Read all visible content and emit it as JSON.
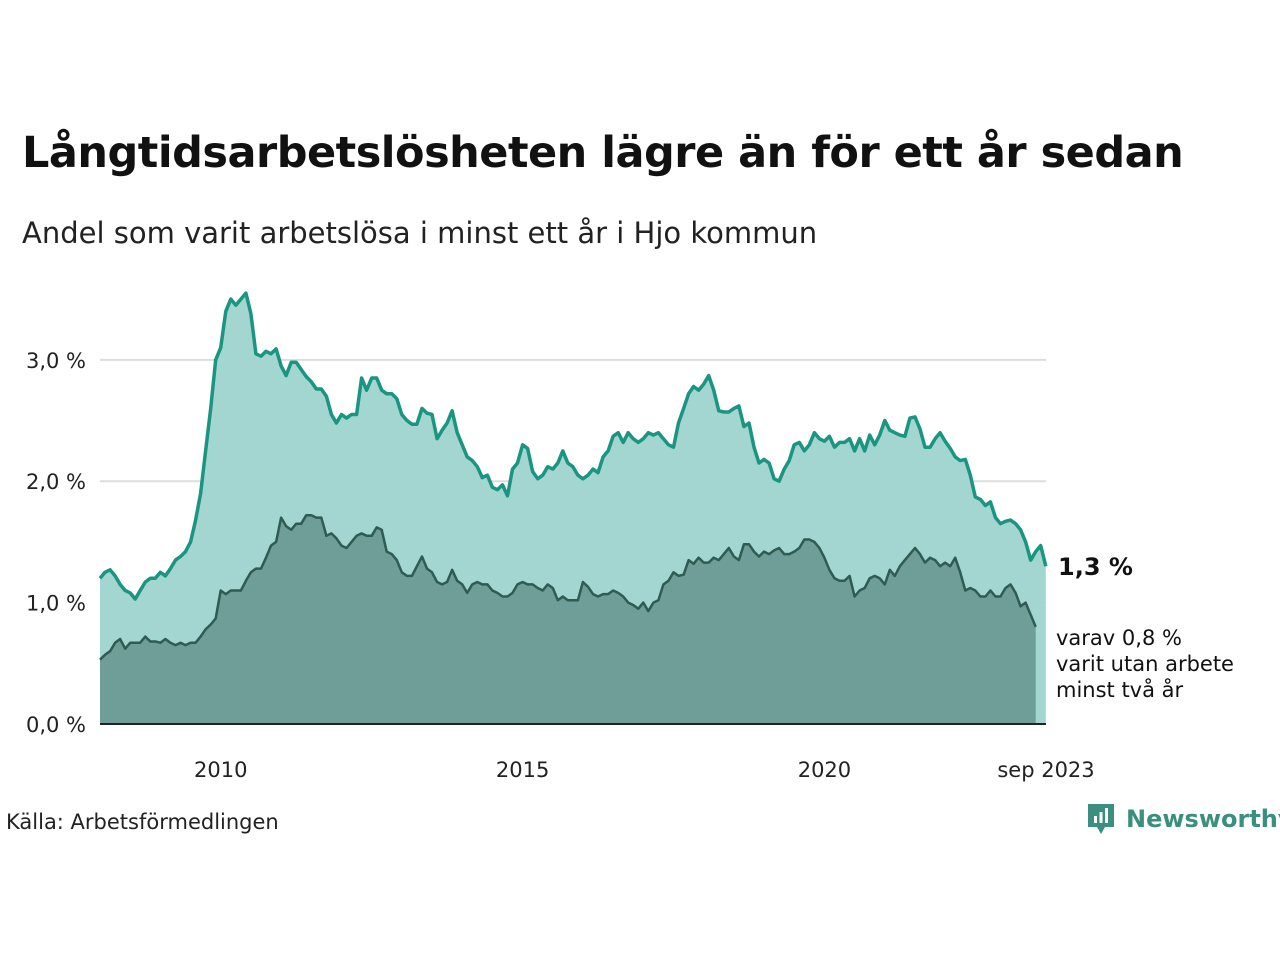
{
  "title": "Långtidsarbetslösheten lägre än för ett år sedan",
  "subtitle": "Andel som varit arbetslösa i minst ett år i Hjo kommun",
  "source": "Källa: Arbetsförmedlingen",
  "brand": "Newsworthy",
  "colors": {
    "upper_line": "#1a9582",
    "upper_fill": "#a3d6d0",
    "lower_line": "#2f5b52",
    "lower_fill": "#6e9e97",
    "grid": "#dddddd",
    "brand": "#3a8f7e"
  },
  "chart_data": {
    "type": "area",
    "unit": "%",
    "x_start": 2008.0,
    "x_step": 0.08333,
    "xlim": [
      2008.0,
      2023.67
    ],
    "ylim": [
      0,
      3.6
    ],
    "y_ticks": [
      {
        "value": 0,
        "label": "0,0 %"
      },
      {
        "value": 1,
        "label": "1,0 %"
      },
      {
        "value": 2,
        "label": "2,0 %"
      },
      {
        "value": 3,
        "label": "3,0 %"
      }
    ],
    "x_ticks": [
      {
        "value": 2010,
        "label": "2010"
      },
      {
        "value": 2015,
        "label": "2015"
      },
      {
        "value": 2020,
        "label": "2020"
      },
      {
        "value": 2023.67,
        "label": "sep 2023"
      }
    ],
    "series": [
      {
        "name": "Andel arbetslösa minst ett år",
        "end_label": "1,3 %",
        "values": [
          1.2,
          1.25,
          1.27,
          1.22,
          1.15,
          1.1,
          1.08,
          1.03,
          1.1,
          1.17,
          1.2,
          1.2,
          1.25,
          1.22,
          1.28,
          1.35,
          1.38,
          1.42,
          1.5,
          1.68,
          1.9,
          2.25,
          2.6,
          3.0,
          3.1,
          3.4,
          3.5,
          3.45,
          3.5,
          3.55,
          3.38,
          3.05,
          3.03,
          3.07,
          3.05,
          3.09,
          2.95,
          2.87,
          2.98,
          2.98,
          2.92,
          2.86,
          2.82,
          2.76,
          2.76,
          2.7,
          2.55,
          2.48,
          2.55,
          2.52,
          2.55,
          2.55,
          2.85,
          2.75,
          2.85,
          2.85,
          2.75,
          2.72,
          2.72,
          2.68,
          2.55,
          2.5,
          2.47,
          2.47,
          2.6,
          2.56,
          2.55,
          2.35,
          2.42,
          2.48,
          2.58,
          2.4,
          2.3,
          2.2,
          2.17,
          2.12,
          2.03,
          2.05,
          1.95,
          1.93,
          1.97,
          1.88,
          2.1,
          2.15,
          2.3,
          2.27,
          2.08,
          2.02,
          2.05,
          2.12,
          2.1,
          2.15,
          2.25,
          2.15,
          2.12,
          2.05,
          2.02,
          2.05,
          2.1,
          2.07,
          2.2,
          2.25,
          2.37,
          2.4,
          2.32,
          2.4,
          2.35,
          2.32,
          2.35,
          2.4,
          2.38,
          2.4,
          2.35,
          2.3,
          2.28,
          2.48,
          2.6,
          2.72,
          2.78,
          2.75,
          2.8,
          2.87,
          2.75,
          2.58,
          2.57,
          2.57,
          2.6,
          2.62,
          2.45,
          2.48,
          2.28,
          2.15,
          2.18,
          2.15,
          2.02,
          2.0,
          2.1,
          2.17,
          2.3,
          2.32,
          2.25,
          2.3,
          2.4,
          2.35,
          2.33,
          2.37,
          2.28,
          2.32,
          2.32,
          2.35,
          2.25,
          2.35,
          2.25,
          2.38,
          2.3,
          2.38,
          2.5,
          2.42,
          2.4,
          2.38,
          2.37,
          2.52,
          2.53,
          2.43,
          2.28,
          2.28,
          2.35,
          2.4,
          2.33,
          2.27,
          2.2,
          2.17,
          2.18,
          2.05,
          1.87,
          1.85,
          1.8,
          1.83,
          1.7,
          1.65,
          1.67,
          1.68,
          1.65,
          1.6,
          1.5,
          1.35,
          1.42,
          1.47,
          1.3
        ]
      },
      {
        "name": "varav varit utan arbete minst två år",
        "end_label": "varav 0,8 %\nvarit utan arbete\nminst två år",
        "values": [
          0.53,
          0.57,
          0.6,
          0.67,
          0.7,
          0.62,
          0.67,
          0.67,
          0.67,
          0.72,
          0.68,
          0.68,
          0.67,
          0.7,
          0.67,
          0.65,
          0.67,
          0.65,
          0.67,
          0.67,
          0.72,
          0.78,
          0.82,
          0.87,
          1.1,
          1.07,
          1.1,
          1.1,
          1.1,
          1.18,
          1.25,
          1.28,
          1.28,
          1.37,
          1.47,
          1.5,
          1.7,
          1.63,
          1.6,
          1.65,
          1.65,
          1.72,
          1.72,
          1.7,
          1.7,
          1.55,
          1.57,
          1.53,
          1.47,
          1.45,
          1.5,
          1.55,
          1.57,
          1.55,
          1.55,
          1.62,
          1.6,
          1.42,
          1.4,
          1.35,
          1.25,
          1.22,
          1.22,
          1.3,
          1.38,
          1.28,
          1.25,
          1.17,
          1.15,
          1.17,
          1.27,
          1.18,
          1.15,
          1.08,
          1.15,
          1.17,
          1.15,
          1.15,
          1.1,
          1.08,
          1.05,
          1.05,
          1.08,
          1.15,
          1.17,
          1.15,
          1.15,
          1.12,
          1.1,
          1.15,
          1.12,
          1.02,
          1.05,
          1.02,
          1.02,
          1.02,
          1.17,
          1.13,
          1.07,
          1.05,
          1.07,
          1.07,
          1.1,
          1.08,
          1.05,
          1.0,
          0.98,
          0.95,
          1.0,
          0.93,
          1.0,
          1.02,
          1.15,
          1.18,
          1.25,
          1.22,
          1.23,
          1.35,
          1.32,
          1.37,
          1.33,
          1.33,
          1.37,
          1.35,
          1.4,
          1.45,
          1.38,
          1.35,
          1.48,
          1.48,
          1.42,
          1.38,
          1.42,
          1.4,
          1.43,
          1.45,
          1.4,
          1.4,
          1.42,
          1.45,
          1.52,
          1.52,
          1.5,
          1.45,
          1.37,
          1.27,
          1.2,
          1.18,
          1.18,
          1.22,
          1.05,
          1.1,
          1.12,
          1.2,
          1.22,
          1.2,
          1.15,
          1.27,
          1.22,
          1.3,
          1.35,
          1.4,
          1.45,
          1.4,
          1.33,
          1.37,
          1.35,
          1.3,
          1.33,
          1.3,
          1.37,
          1.25,
          1.1,
          1.12,
          1.1,
          1.05,
          1.05,
          1.1,
          1.05,
          1.05,
          1.12,
          1.15,
          1.08,
          0.97,
          1.0,
          0.9,
          0.8
        ]
      }
    ]
  }
}
